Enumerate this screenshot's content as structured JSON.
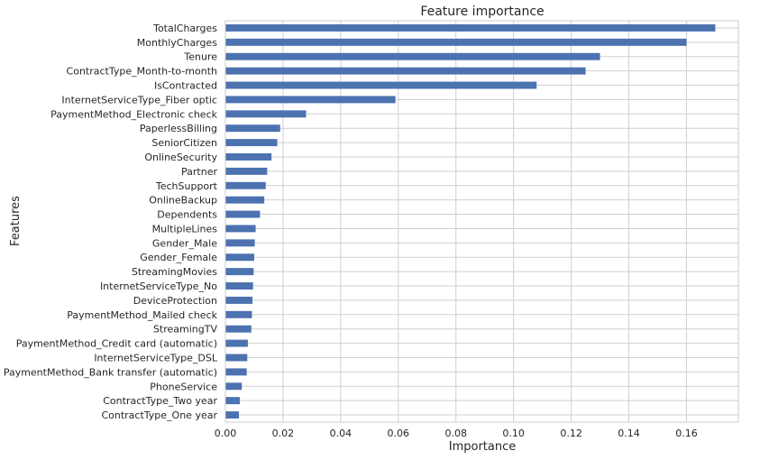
{
  "chart_data": {
    "type": "bar",
    "orientation": "horizontal",
    "title": "Feature importance",
    "xlabel": "Importance",
    "ylabel": "Features",
    "xlim": [
      0.0,
      0.178
    ],
    "xticks": [
      0.0,
      0.02,
      0.04,
      0.06,
      0.08,
      0.1,
      0.12,
      0.14,
      0.16
    ],
    "xtick_labels": [
      "0.00",
      "0.02",
      "0.04",
      "0.06",
      "0.08",
      "0.10",
      "0.12",
      "0.14",
      "0.16"
    ],
    "grid": true,
    "bar_color": "#4c72b0",
    "categories": [
      "TotalCharges",
      "MonthlyCharges",
      "Tenure",
      "ContractType_Month-to-month",
      "IsContracted",
      "InternetServiceType_Fiber optic",
      "PaymentMethod_Electronic check",
      "PaperlessBilling",
      "SeniorCitizen",
      "OnlineSecurity",
      "Partner",
      "TechSupport",
      "OnlineBackup",
      "Dependents",
      "MultipleLines",
      "Gender_Male",
      "Gender_Female",
      "StreamingMovies",
      "InternetServiceType_No",
      "DeviceProtection",
      "PaymentMethod_Mailed check",
      "StreamingTV",
      "PaymentMethod_Credit card (automatic)",
      "InternetServiceType_DSL",
      "PaymentMethod_Bank transfer (automatic)",
      "PhoneService",
      "ContractType_Two year",
      "ContractType_One year"
    ],
    "values": [
      0.17,
      0.16,
      0.13,
      0.125,
      0.108,
      0.059,
      0.028,
      0.019,
      0.018,
      0.016,
      0.0145,
      0.014,
      0.0135,
      0.012,
      0.0105,
      0.0102,
      0.01,
      0.0098,
      0.0096,
      0.0094,
      0.0092,
      0.009,
      0.0078,
      0.0076,
      0.0074,
      0.0057,
      0.005,
      0.0047
    ]
  }
}
